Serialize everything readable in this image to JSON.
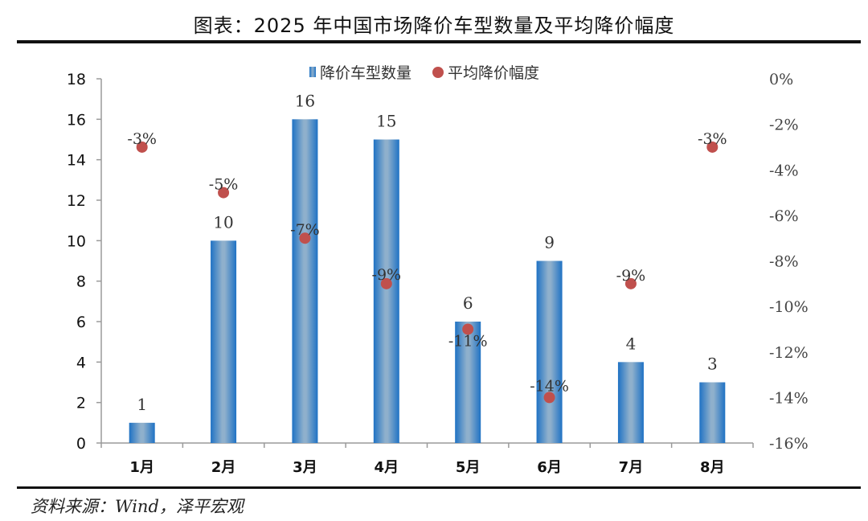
{
  "title": "图表：2025 年中国市场降价车型数量及平均降价幅度",
  "source": "资料来源：Wind，泽平宏观",
  "legend": {
    "bar_label": "降价车型数量",
    "dot_label": "平均降价幅度"
  },
  "colors": {
    "bar_edge": "#1f72c4",
    "bar_center": "#8fb0cc",
    "dot": "#c0504d",
    "axis": "#9a9a9a"
  },
  "chart_data": {
    "type": "bar",
    "title": "图表：2025 年中国市场降价车型数量及平均降价幅度",
    "categories": [
      "1月",
      "2月",
      "3月",
      "4月",
      "5月",
      "6月",
      "7月",
      "8月"
    ],
    "series": [
      {
        "name": "降价车型数量",
        "type": "bar",
        "axis": "left",
        "values": [
          1,
          10,
          16,
          15,
          6,
          9,
          4,
          3
        ],
        "labels": [
          "1",
          "10",
          "16",
          "15",
          "6",
          "9",
          "4",
          "3"
        ]
      },
      {
        "name": "平均降价幅度",
        "type": "scatter",
        "axis": "right",
        "values": [
          -3,
          -5,
          -7,
          -9,
          -11,
          -14,
          -9,
          -3
        ],
        "labels": [
          "-3%",
          "-5%",
          "-7%",
          "-9%",
          "-11%",
          "-14%",
          "-9%",
          "-3%"
        ]
      }
    ],
    "xlabel": "",
    "ylabel": "",
    "ylim": [
      0,
      18
    ],
    "yticks": [
      "0",
      "2",
      "4",
      "6",
      "8",
      "10",
      "12",
      "14",
      "16",
      "18"
    ],
    "y2lim": [
      -16,
      0
    ],
    "y2ticks": [
      "0%",
      "-2%",
      "-4%",
      "-6%",
      "-8%",
      "-10%",
      "-12%",
      "-14%",
      "-16%"
    ],
    "grid": false,
    "legend_position": "top"
  }
}
